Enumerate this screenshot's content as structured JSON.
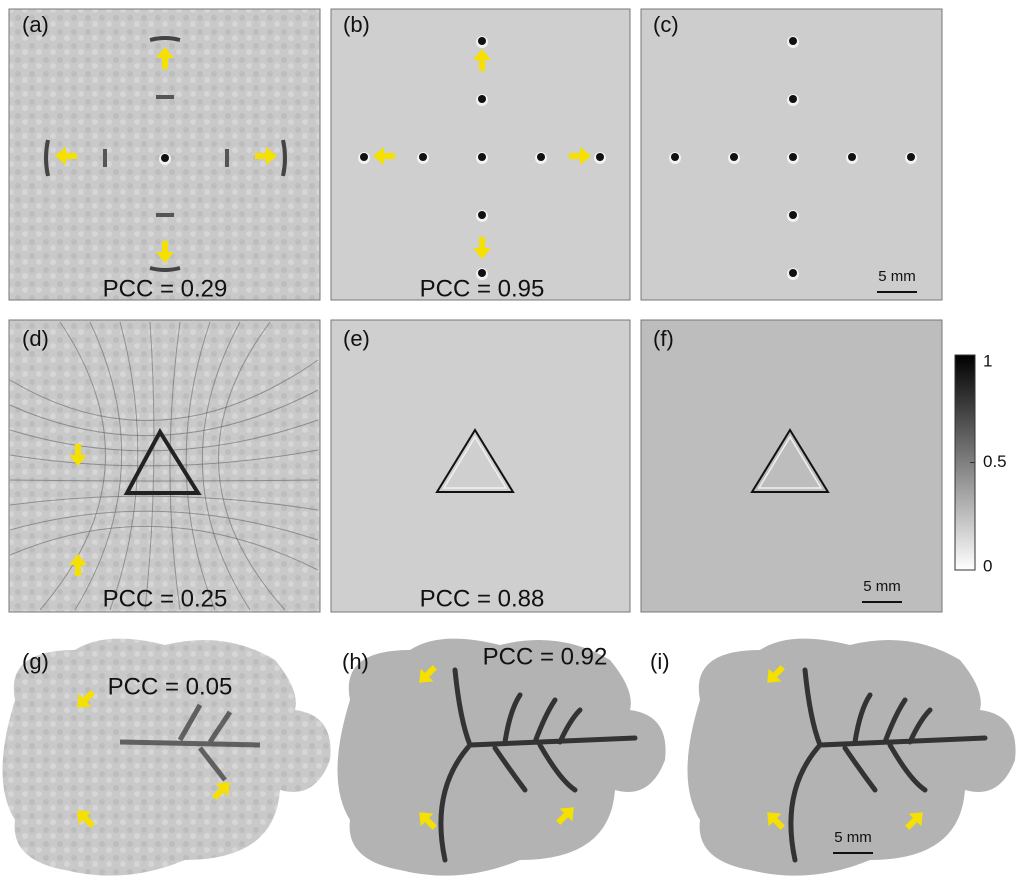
{
  "panels": [
    {
      "label": "(a)",
      "pcc": "PCC = 0.29"
    },
    {
      "label": "(b)",
      "pcc": "PCC = 0.95"
    },
    {
      "label": "(c)",
      "scale_bar": "5 mm"
    },
    {
      "label": "(d)",
      "pcc": "PCC = 0.25"
    },
    {
      "label": "(e)",
      "pcc": "PCC = 0.88"
    },
    {
      "label": "(f)",
      "scale_bar": "5 mm"
    },
    {
      "label": "(g)",
      "pcc": "PCC = 0.05"
    },
    {
      "label": "(h)",
      "pcc": "PCC = 0.92"
    },
    {
      "label": "(i)",
      "scale_bar": "5 mm"
    }
  ],
  "colorbar": {
    "lim": [
      0,
      1
    ],
    "ticks": [
      0,
      0.5,
      1
    ]
  }
}
